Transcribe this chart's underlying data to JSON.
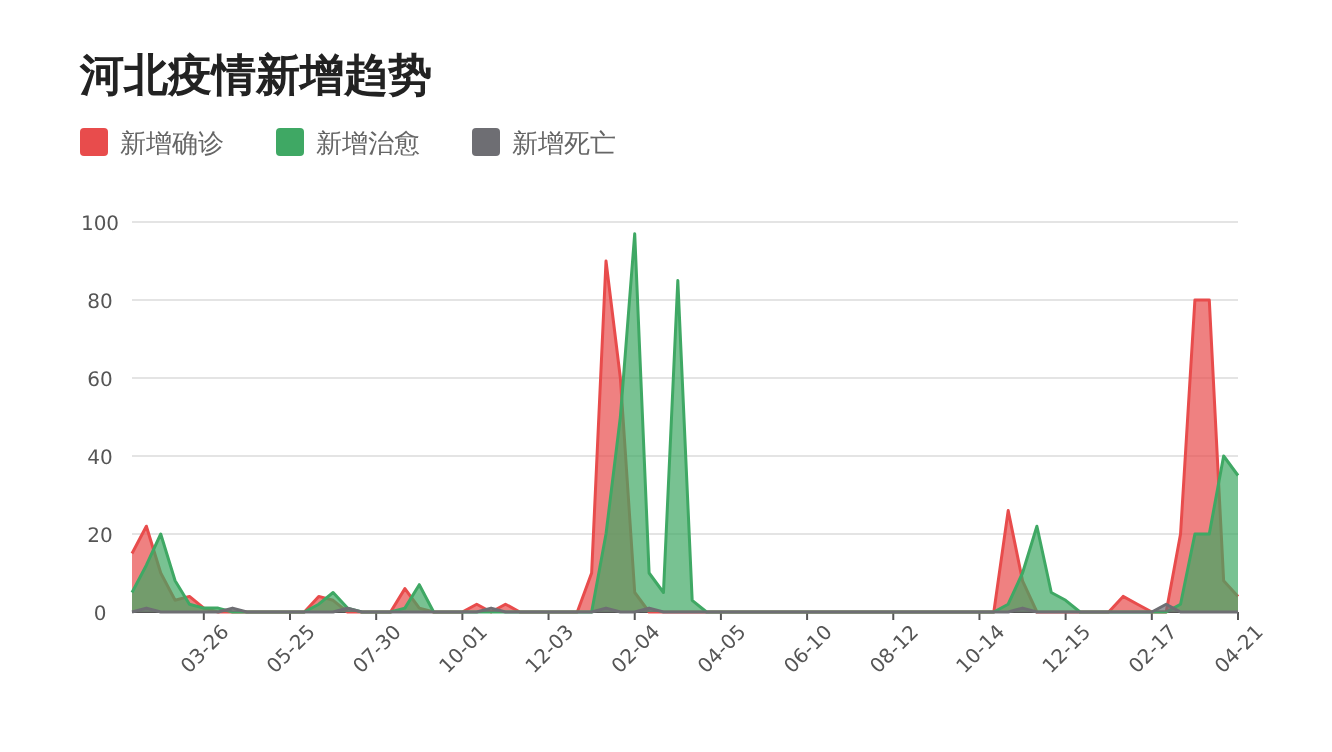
{
  "chart_data": {
    "type": "area",
    "title": "河北疫情新增趋势",
    "legend": "top left",
    "grid": "y",
    "ylim": [
      0,
      100
    ],
    "yticks": [
      0,
      20,
      40,
      60,
      80,
      100
    ],
    "categories": [
      null,
      null,
      null,
      null,
      null,
      "03-26",
      null,
      null,
      null,
      null,
      null,
      "05-25",
      null,
      null,
      null,
      null,
      null,
      "07-30",
      null,
      null,
      null,
      null,
      null,
      "10-01",
      null,
      null,
      null,
      null,
      null,
      "12-03",
      null,
      null,
      null,
      null,
      null,
      "02-04",
      null,
      null,
      null,
      null,
      null,
      "04-05",
      null,
      null,
      null,
      null,
      null,
      "06-10",
      null,
      null,
      null,
      null,
      null,
      "08-12",
      null,
      null,
      null,
      null,
      null,
      "10-14",
      null,
      null,
      null,
      null,
      null,
      "12-15",
      null,
      null,
      null,
      null,
      null,
      "02-17",
      null,
      null,
      null,
      null,
      null,
      "04-21"
    ],
    "series": [
      {
        "name": "新增确诊",
        "color": "#e84c4c",
        "values": [
          15,
          22,
          10,
          3,
          4,
          1,
          0,
          0,
          0,
          0,
          0,
          0,
          0,
          4,
          3,
          0,
          0,
          0,
          0,
          6,
          1,
          0,
          0,
          0,
          2,
          0,
          2,
          0,
          0,
          0,
          0,
          0,
          10,
          90,
          60,
          5,
          0,
          0,
          0,
          0,
          0,
          0,
          0,
          0,
          0,
          0,
          0,
          0,
          0,
          0,
          0,
          0,
          0,
          0,
          0,
          0,
          0,
          0,
          0,
          0,
          0,
          26,
          8,
          0,
          0,
          0,
          0,
          0,
          0,
          4,
          2,
          0,
          0,
          20,
          80,
          80,
          8,
          4
        ]
      },
      {
        "name": "新增治愈",
        "color": "#3fa864",
        "values": [
          5,
          12,
          20,
          8,
          2,
          1,
          1,
          0,
          0,
          0,
          0,
          0,
          0,
          2,
          5,
          1,
          0,
          0,
          0,
          1,
          7,
          0,
          0,
          0,
          0,
          0,
          0,
          0,
          0,
          0,
          0,
          0,
          0,
          20,
          50,
          97,
          10,
          5,
          85,
          3,
          0,
          0,
          0,
          0,
          0,
          0,
          0,
          0,
          0,
          0,
          0,
          0,
          0,
          0,
          0,
          0,
          0,
          0,
          0,
          0,
          0,
          2,
          10,
          22,
          5,
          3,
          0,
          0,
          0,
          0,
          0,
          0,
          0,
          2,
          20,
          20,
          40,
          35
        ]
      },
      {
        "name": "新增死亡",
        "color": "#6e6e73",
        "values": [
          0,
          1,
          0,
          0,
          0,
          0,
          0,
          1,
          0,
          0,
          0,
          0,
          0,
          0,
          0,
          1,
          0,
          0,
          0,
          0,
          0,
          0,
          0,
          0,
          0,
          1,
          0,
          0,
          0,
          0,
          0,
          0,
          0,
          1,
          0,
          0,
          1,
          0,
          0,
          0,
          0,
          0,
          0,
          0,
          0,
          0,
          0,
          0,
          0,
          0,
          0,
          0,
          0,
          0,
          0,
          0,
          0,
          0,
          0,
          0,
          0,
          0,
          1,
          0,
          0,
          0,
          0,
          0,
          0,
          0,
          0,
          0,
          2,
          0,
          0,
          0,
          0,
          0
        ]
      }
    ]
  }
}
